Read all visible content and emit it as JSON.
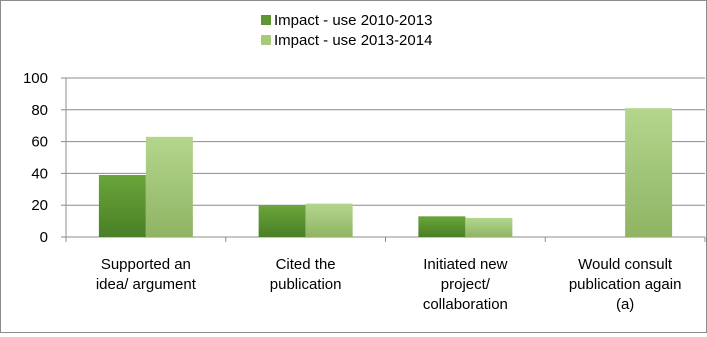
{
  "chart_data": {
    "type": "bar",
    "categories": [
      [
        "Supported an",
        "idea/ argument"
      ],
      [
        "Cited the",
        "publication"
      ],
      [
        "Initiated new",
        "project/",
        "collaboration"
      ],
      [
        "Would consult",
        "publication again",
        "(a)"
      ]
    ],
    "series": [
      {
        "name": "Impact - use 2010-2013",
        "values": [
          39,
          20,
          13,
          null
        ],
        "color": "#5e9633"
      },
      {
        "name": "Impact - use 2013-2014",
        "values": [
          63,
          21,
          12,
          81
        ],
        "color": "#a6c97a"
      }
    ],
    "ylim": [
      0,
      100
    ],
    "yticks": [
      0,
      20,
      40,
      60,
      80,
      100
    ],
    "grid": true,
    "legend_position": "top"
  }
}
